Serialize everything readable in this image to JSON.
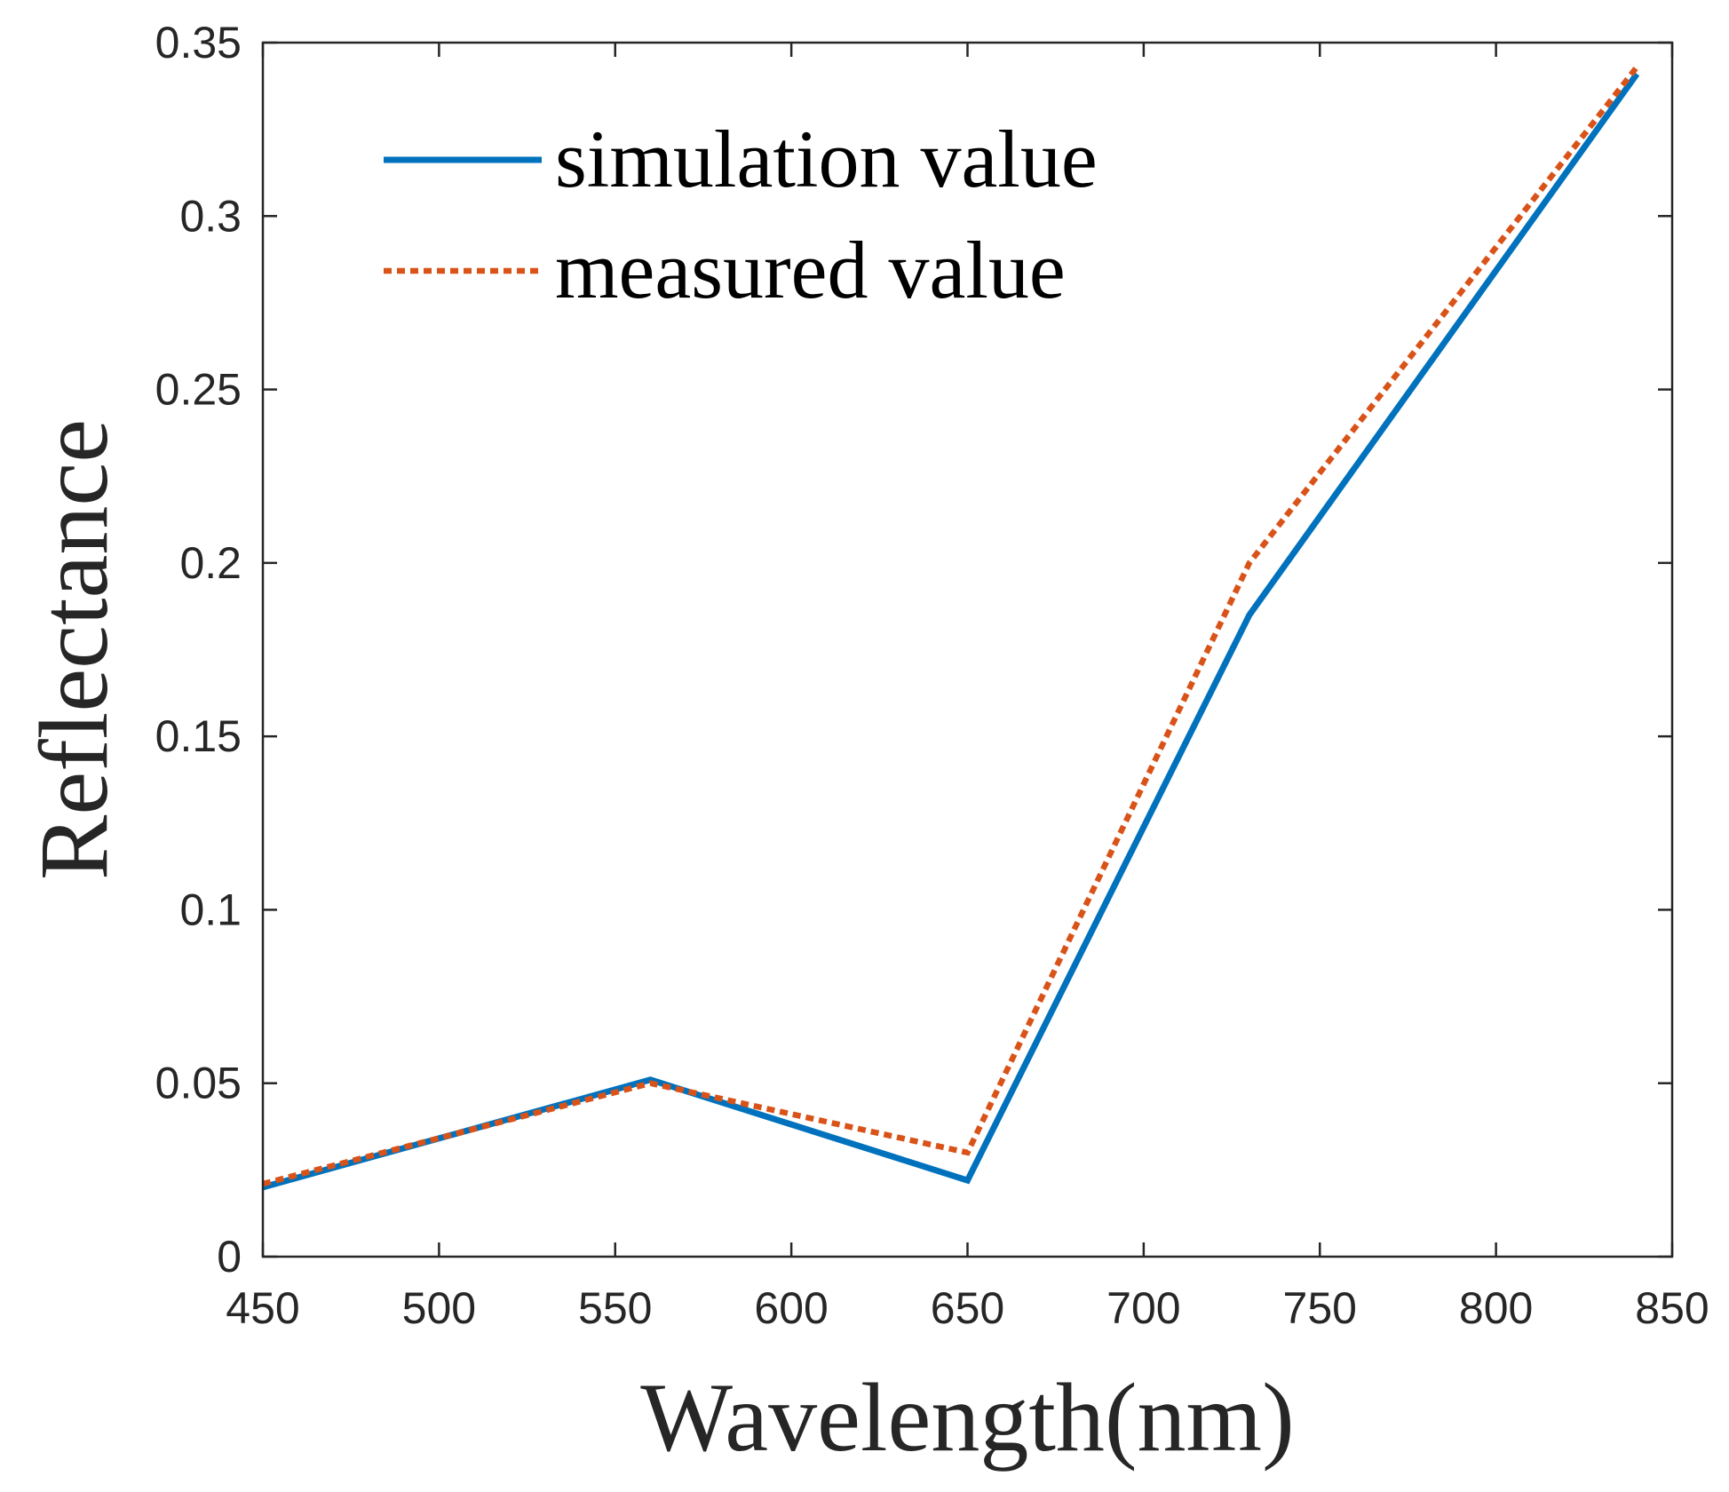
{
  "chart_data": {
    "type": "line",
    "title": "",
    "xlabel": "Wavelength(nm)",
    "ylabel": "Reflectance",
    "xlim": [
      450,
      850
    ],
    "ylim": [
      0,
      0.35
    ],
    "xticks": [
      450,
      500,
      550,
      600,
      650,
      700,
      750,
      800,
      850
    ],
    "xtick_labels": [
      "450",
      "500",
      "550",
      "600",
      "650",
      "700",
      "750",
      "800",
      "850"
    ],
    "yticks": [
      0,
      0.05,
      0.1,
      0.15,
      0.2,
      0.25,
      0.3,
      0.35
    ],
    "ytick_labels": [
      "0",
      "0.05",
      "0.1",
      "0.15",
      "0.2",
      "0.25",
      "0.3",
      "0.35"
    ],
    "grid": false,
    "legend_position": "top-left",
    "series": [
      {
        "name": "simulation value",
        "style": "solid",
        "color": "#0072BD",
        "x": [
          450,
          560,
          650,
          730,
          840
        ],
        "y": [
          0.02,
          0.051,
          0.022,
          0.185,
          0.341
        ]
      },
      {
        "name": "measured value",
        "style": "dotted",
        "color": "#D95319",
        "x": [
          450,
          560,
          650,
          730,
          840
        ],
        "y": [
          0.021,
          0.05,
          0.03,
          0.2,
          0.343
        ]
      }
    ]
  }
}
